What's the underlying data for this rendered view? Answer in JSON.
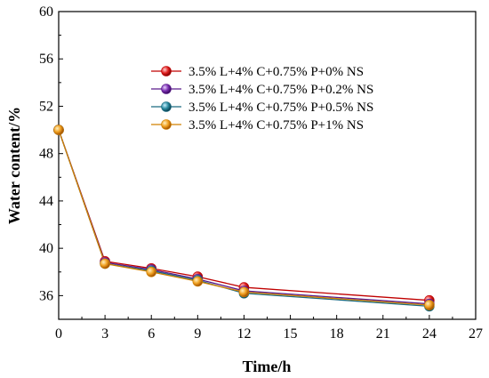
{
  "chart_data": {
    "type": "line",
    "title": "",
    "xlabel": "Time/h",
    "ylabel": "Water content/%",
    "xlim": [
      0,
      27
    ],
    "ylim": [
      34,
      60
    ],
    "x_ticks": [
      0,
      3,
      6,
      9,
      12,
      15,
      18,
      21,
      24,
      27
    ],
    "y_ticks": [
      36,
      40,
      44,
      48,
      52,
      56,
      60
    ],
    "x": [
      0,
      3,
      6,
      9,
      12,
      24
    ],
    "series": [
      {
        "name": "3.5% L+4% C+0.75% P+0% NS",
        "color": "#c00000",
        "marker": "#e02020",
        "values": [
          50.0,
          38.9,
          38.3,
          37.6,
          36.7,
          35.6
        ]
      },
      {
        "name": "3.5% L+4% C+0.75% P+0.2% NS",
        "color": "#5a1a8c",
        "marker": "#7a2fb0",
        "values": [
          50.0,
          38.8,
          38.2,
          37.4,
          36.4,
          35.3
        ]
      },
      {
        "name": "3.5% L+4% C+0.75% P+0.5% NS",
        "color": "#1a6a80",
        "marker": "#2a8aa0",
        "values": [
          50.0,
          38.7,
          38.1,
          37.3,
          36.2,
          35.1
        ]
      },
      {
        "name": "3.5% L+4% C+0.75% P+1% NS",
        "color": "#d08000",
        "marker": "#f0a020",
        "values": [
          50.0,
          38.7,
          38.0,
          37.2,
          36.3,
          35.2
        ]
      }
    ],
    "grid": false,
    "legend_position": "top-right"
  }
}
